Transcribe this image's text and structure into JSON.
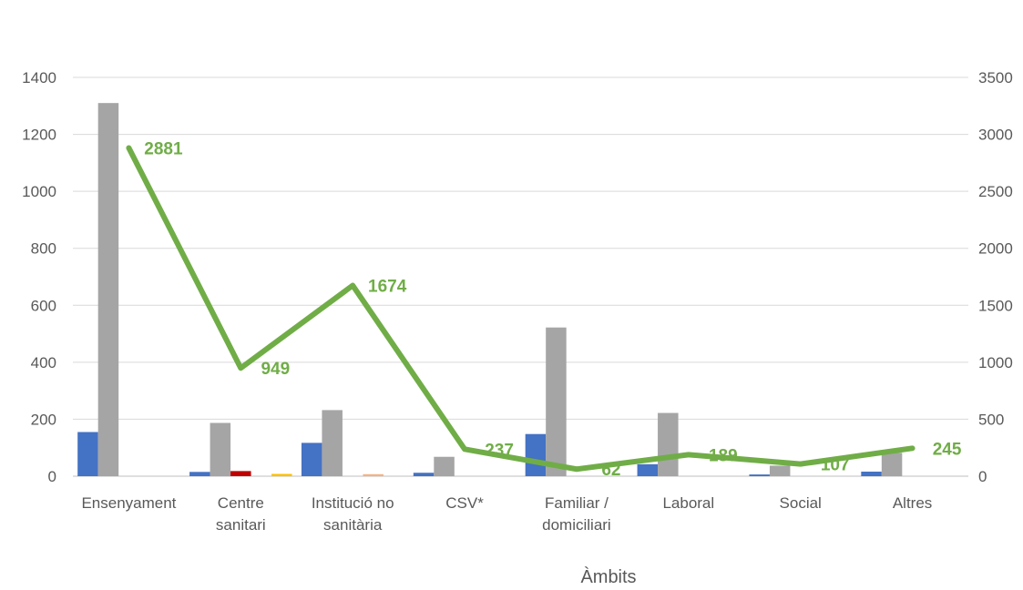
{
  "chart_data": {
    "type": "bar",
    "xlabel": "Àmbits",
    "categories": [
      [
        "Ensenyament"
      ],
      [
        "Centre",
        "sanitari"
      ],
      [
        "Institució no",
        "sanitària"
      ],
      [
        "CSV*"
      ],
      [
        "Familiar /",
        "domiciliari"
      ],
      [
        "Laboral"
      ],
      [
        "Social"
      ],
      [
        "Altres"
      ]
    ],
    "y_left": {
      "min": 0,
      "max": 1400,
      "ticks": [
        "0",
        "200",
        "400",
        "600",
        "800",
        "1000",
        "1200",
        "1400"
      ]
    },
    "y_right": {
      "min": 0,
      "max": 3500,
      "ticks": [
        "0",
        "500",
        "1000",
        "1500",
        "2000",
        "2500",
        "3000",
        "3500"
      ]
    },
    "grid": true,
    "bar_series": [
      {
        "color": "#4472c4",
        "values": [
          155,
          15,
          117,
          12,
          148,
          42,
          6,
          16
        ]
      },
      {
        "color": "#a5a5a5",
        "values": [
          1310,
          187,
          232,
          68,
          522,
          222,
          37,
          82
        ]
      },
      {
        "color": "#c00000",
        "values": [
          0,
          18,
          0,
          0,
          0,
          0,
          0,
          0
        ]
      },
      {
        "color": "#f4b183",
        "values": [
          0,
          0,
          7,
          0,
          0,
          0,
          0,
          0
        ]
      },
      {
        "color": "#ffc000",
        "values": [
          0,
          8,
          0,
          0,
          0,
          0,
          0,
          0
        ]
      }
    ],
    "line_series": {
      "axis": "right",
      "color": "#70ad47",
      "values": [
        2881,
        949,
        1674,
        237,
        62,
        189,
        107,
        245
      ],
      "labels": [
        "2881",
        "949",
        "1674",
        "237",
        "62",
        "189",
        "107",
        "245"
      ]
    }
  }
}
